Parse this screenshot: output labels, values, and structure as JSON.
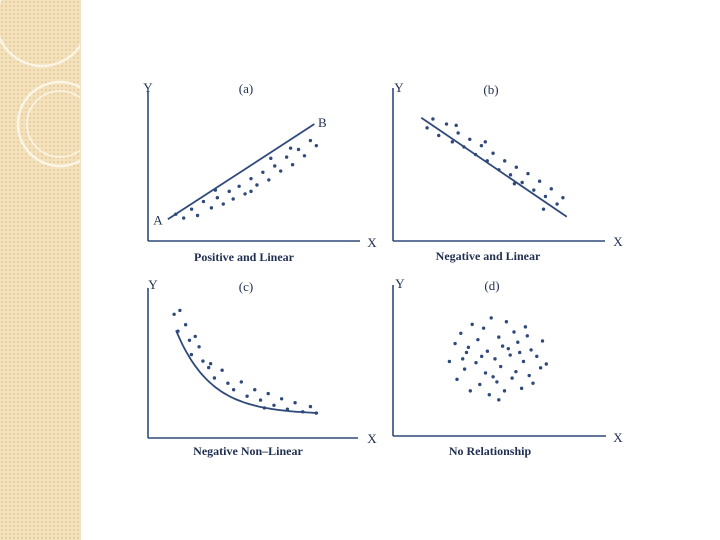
{
  "colors": {
    "ink": "#2f4a7a",
    "sidebar": "#f3e2bd"
  },
  "chart_data": [
    {
      "type": "scatter",
      "panel_label": "(a)",
      "caption": "Positive and Linear",
      "xlabel": "X",
      "ylabel": "Y",
      "xlim": [
        0,
        10
      ],
      "ylim": [
        0,
        10
      ],
      "annotations": [
        {
          "text": "A",
          "x": 0.3,
          "y": 0.9
        },
        {
          "text": "B",
          "x": 8.6,
          "y": 8.6
        }
      ],
      "line": [
        [
          0.8,
          1.0
        ],
        [
          8.2,
          8.5
        ]
      ],
      "points": [
        [
          1.2,
          1.4
        ],
        [
          1.6,
          1.1
        ],
        [
          2.0,
          1.8
        ],
        [
          2.3,
          1.3
        ],
        [
          2.6,
          2.4
        ],
        [
          3.0,
          1.9
        ],
        [
          3.3,
          2.7
        ],
        [
          3.6,
          2.2
        ],
        [
          3.9,
          3.2
        ],
        [
          4.1,
          2.6
        ],
        [
          4.4,
          3.6
        ],
        [
          4.7,
          3.0
        ],
        [
          5.0,
          4.2
        ],
        [
          5.3,
          3.7
        ],
        [
          5.6,
          4.7
        ],
        [
          5.9,
          4.1
        ],
        [
          6.2,
          5.2
        ],
        [
          6.5,
          4.8
        ],
        [
          6.8,
          5.9
        ],
        [
          7.1,
          5.3
        ],
        [
          7.4,
          6.5
        ],
        [
          7.7,
          6.0
        ],
        [
          8.0,
          7.2
        ],
        [
          8.3,
          6.8
        ],
        [
          6.0,
          5.8
        ],
        [
          5.0,
          3.2
        ],
        [
          3.2,
          3.3
        ],
        [
          7.0,
          6.6
        ]
      ]
    },
    {
      "type": "scatter",
      "panel_label": "(b)",
      "caption": "Negative and Linear",
      "xlabel": "X",
      "ylabel": "Y",
      "xlim": [
        0,
        10
      ],
      "ylim": [
        0,
        10
      ],
      "line": [
        [
          1.2,
          9.0
        ],
        [
          8.7,
          1.2
        ]
      ],
      "points": [
        [
          1.5,
          8.2
        ],
        [
          1.8,
          8.9
        ],
        [
          2.1,
          7.6
        ],
        [
          2.5,
          8.5
        ],
        [
          2.8,
          7.1
        ],
        [
          3.1,
          7.8
        ],
        [
          3.4,
          6.7
        ],
        [
          3.7,
          7.3
        ],
        [
          4.0,
          6.1
        ],
        [
          4.3,
          6.8
        ],
        [
          4.6,
          5.6
        ],
        [
          4.9,
          6.2
        ],
        [
          5.2,
          4.9
        ],
        [
          5.5,
          5.6
        ],
        [
          5.8,
          4.5
        ],
        [
          6.1,
          5.1
        ],
        [
          6.4,
          3.9
        ],
        [
          6.7,
          4.6
        ],
        [
          7.0,
          3.3
        ],
        [
          7.3,
          4.0
        ],
        [
          7.6,
          2.8
        ],
        [
          7.9,
          3.4
        ],
        [
          8.2,
          2.2
        ],
        [
          8.5,
          2.7
        ],
        [
          3.0,
          8.4
        ],
        [
          6.0,
          3.8
        ],
        [
          4.5,
          7.1
        ],
        [
          7.5,
          1.8
        ]
      ]
    },
    {
      "type": "scatter",
      "panel_label": "(c)",
      "caption": "Negative Non–Linear",
      "xlabel": "X",
      "ylabel": "Y",
      "xlim": [
        0,
        10
      ],
      "ylim": [
        0,
        10
      ],
      "points": [
        [
          1.1,
          8.9
        ],
        [
          1.4,
          9.2
        ],
        [
          1.3,
          7.6
        ],
        [
          1.7,
          8.1
        ],
        [
          1.9,
          6.9
        ],
        [
          2.0,
          5.8
        ],
        [
          2.4,
          6.4
        ],
        [
          2.6,
          5.3
        ],
        [
          2.9,
          4.8
        ],
        [
          3.2,
          4.0
        ],
        [
          3.6,
          4.6
        ],
        [
          3.9,
          3.6
        ],
        [
          4.2,
          3.1
        ],
        [
          4.6,
          3.7
        ],
        [
          4.9,
          2.6
        ],
        [
          5.3,
          3.1
        ],
        [
          5.6,
          2.3
        ],
        [
          6.0,
          2.8
        ],
        [
          6.3,
          1.9
        ],
        [
          6.7,
          2.4
        ],
        [
          7.0,
          1.6
        ],
        [
          7.4,
          2.1
        ],
        [
          7.8,
          1.4
        ],
        [
          8.2,
          1.8
        ],
        [
          8.5,
          1.3
        ],
        [
          2.2,
          7.2
        ],
        [
          3.0,
          5.1
        ],
        [
          5.8,
          1.7
        ]
      ]
    },
    {
      "type": "scatter",
      "panel_label": "(d)",
      "caption": "No Relationship",
      "xlabel": "X",
      "ylabel": "Y",
      "xlim": [
        0,
        10
      ],
      "ylim": [
        0,
        10
      ],
      "points": [
        [
          2.6,
          5.2
        ],
        [
          2.9,
          6.6
        ],
        [
          3.0,
          3.8
        ],
        [
          3.2,
          7.4
        ],
        [
          3.4,
          4.6
        ],
        [
          3.5,
          5.9
        ],
        [
          3.7,
          2.9
        ],
        [
          3.8,
          8.1
        ],
        [
          4.0,
          5.1
        ],
        [
          4.1,
          6.9
        ],
        [
          4.2,
          3.4
        ],
        [
          4.4,
          7.8
        ],
        [
          4.5,
          4.3
        ],
        [
          4.6,
          6.0
        ],
        [
          4.7,
          2.6
        ],
        [
          4.8,
          8.6
        ],
        [
          5.0,
          5.4
        ],
        [
          5.1,
          3.6
        ],
        [
          5.2,
          7.1
        ],
        [
          5.3,
          4.8
        ],
        [
          5.4,
          6.4
        ],
        [
          5.5,
          2.9
        ],
        [
          5.6,
          8.3
        ],
        [
          5.8,
          5.7
        ],
        [
          5.9,
          3.9
        ],
        [
          6.0,
          7.5
        ],
        [
          6.1,
          4.4
        ],
        [
          6.2,
          6.7
        ],
        [
          6.4,
          3.1
        ],
        [
          6.5,
          5.2
        ],
        [
          6.6,
          7.9
        ],
        [
          6.8,
          4.1
        ],
        [
          6.9,
          6.1
        ],
        [
          7.0,
          3.5
        ],
        [
          7.2,
          5.6
        ],
        [
          7.4,
          4.7
        ],
        [
          7.5,
          6.8
        ],
        [
          7.7,
          5.0
        ],
        [
          4.3,
          5.6
        ],
        [
          5.7,
          6.2
        ],
        [
          4.9,
          4.0
        ],
        [
          6.3,
          5.9
        ],
        [
          3.6,
          6.3
        ],
        [
          5.2,
          2.2
        ],
        [
          6.7,
          7.2
        ],
        [
          3.3,
          5.4
        ]
      ]
    }
  ]
}
